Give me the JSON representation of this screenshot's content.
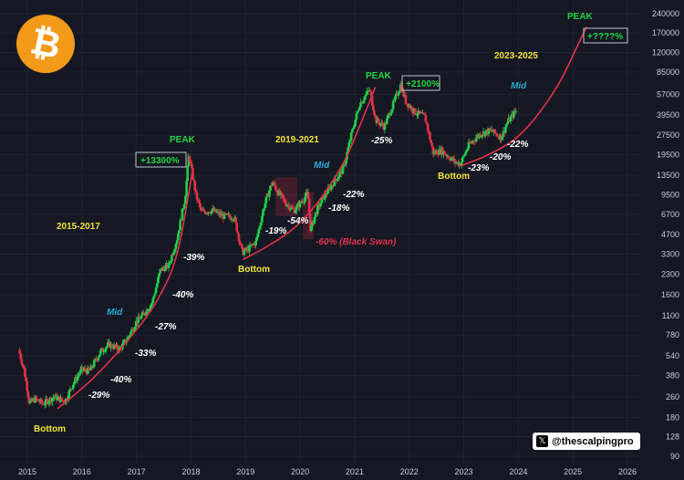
{
  "chart_data": {
    "type": "candlestick",
    "y_scale": "log",
    "ylim": [
      90,
      240000
    ],
    "y_ticks": [
      "240000",
      "170000",
      "120000",
      "85000",
      "57000",
      "39500",
      "27500",
      "19500",
      "13500",
      "9500",
      "6700",
      "4700",
      "3300",
      "2300",
      "1600",
      "1100",
      "780",
      "540",
      "380",
      "260",
      "180",
      "128",
      "90"
    ],
    "x_ticks": [
      "2015",
      "2016",
      "2017",
      "2018",
      "2019",
      "2020",
      "2021",
      "2022",
      "2023",
      "2024",
      "2025",
      "2026"
    ],
    "xlim": [
      2015.0,
      2026.2
    ],
    "price_path": [
      [
        2014.85,
        600
      ],
      [
        2014.95,
        420
      ],
      [
        2015.05,
        230
      ],
      [
        2015.15,
        250
      ],
      [
        2015.3,
        230
      ],
      [
        2015.5,
        260
      ],
      [
        2015.7,
        240
      ],
      [
        2015.85,
        330
      ],
      [
        2016.0,
        420
      ],
      [
        2016.15,
        410
      ],
      [
        2016.35,
        580
      ],
      [
        2016.5,
        660
      ],
      [
        2016.7,
        610
      ],
      [
        2016.85,
        740
      ],
      [
        2017.0,
        980
      ],
      [
        2017.15,
        1150
      ],
      [
        2017.3,
        1400
      ],
      [
        2017.45,
        2500
      ],
      [
        2017.6,
        2700
      ],
      [
        2017.75,
        4300
      ],
      [
        2017.9,
        9000
      ],
      [
        2017.97,
        19500
      ],
      [
        2018.1,
        9500
      ],
      [
        2018.2,
        7000
      ],
      [
        2018.4,
        7200
      ],
      [
        2018.6,
        6500
      ],
      [
        2018.8,
        6400
      ],
      [
        2018.95,
        3400
      ],
      [
        2019.05,
        3600
      ],
      [
        2019.2,
        4100
      ],
      [
        2019.35,
        7800
      ],
      [
        2019.5,
        12000
      ],
      [
        2019.6,
        10000
      ],
      [
        2019.75,
        8200
      ],
      [
        2019.9,
        7200
      ],
      [
        2020.05,
        8600
      ],
      [
        2020.15,
        9800
      ],
      [
        2020.2,
        5000
      ],
      [
        2020.3,
        7000
      ],
      [
        2020.45,
        9300
      ],
      [
        2020.6,
        11500
      ],
      [
        2020.8,
        15000
      ],
      [
        2020.95,
        28000
      ],
      [
        2021.1,
        48000
      ],
      [
        2021.28,
        62000
      ],
      [
        2021.4,
        36000
      ],
      [
        2021.55,
        32000
      ],
      [
        2021.7,
        46000
      ],
      [
        2021.85,
        67000
      ],
      [
        2021.95,
        50000
      ],
      [
        2022.1,
        42000
      ],
      [
        2022.3,
        38000
      ],
      [
        2022.45,
        20000
      ],
      [
        2022.6,
        21000
      ],
      [
        2022.85,
        17000
      ],
      [
        2022.95,
        16600
      ],
      [
        2023.1,
        23000
      ],
      [
        2023.3,
        28000
      ],
      [
        2023.5,
        30000
      ],
      [
        2023.7,
        26500
      ],
      [
        2023.8,
        34000
      ],
      [
        2023.95,
        42000
      ]
    ],
    "curve_1": [
      [
        2015.55,
        210
      ],
      [
        2016.2,
        360
      ],
      [
        2016.9,
        760
      ],
      [
        2017.4,
        1500
      ],
      [
        2017.75,
        3400
      ],
      [
        2018.02,
        14000
      ]
    ],
    "curve_2": [
      [
        2018.95,
        3000
      ],
      [
        2019.4,
        3800
      ],
      [
        2019.9,
        5300
      ],
      [
        2020.35,
        8600
      ],
      [
        2020.8,
        17000
      ],
      [
        2021.1,
        33000
      ],
      [
        2021.38,
        65000
      ]
    ],
    "curve_3": [
      [
        2022.95,
        16000
      ],
      [
        2023.4,
        19000
      ],
      [
        2023.9,
        25000
      ],
      [
        2024.3,
        37000
      ],
      [
        2024.75,
        70000
      ],
      [
        2025.1,
        140000
      ],
      [
        2025.25,
        190000
      ]
    ]
  },
  "annotations": {
    "p2015": "2015-2017",
    "p2019": "2019-2021",
    "p2023": "2023-2025",
    "peak1": "PEAK",
    "peak2": "PEAK",
    "peak3": "PEAK",
    "mid1": "Mid",
    "mid2": "Mid",
    "mid3": "Mid",
    "bottom1": "Bottom",
    "bottom2": "Bottom",
    "bottom3": "Bottom",
    "gain1": "+13300%",
    "gain2": "+2100%",
    "gain3": "+????%",
    "black_swan": "-60% (Black Swan)",
    "d1_29": "-29%",
    "d1_40a": "-40%",
    "d1_33": "-33%",
    "d1_27": "-27%",
    "d1_40b": "-40%",
    "d1_39": "-39%",
    "d2_19": "-19%",
    "d2_54": "-54%",
    "d2_18": "-18%",
    "d2_22": "-22%",
    "d2_25": "-25%",
    "d3_23": "-23%",
    "d3_20": "-20%",
    "d3_22": "-22%"
  },
  "logo": {
    "symbol": "₿",
    "color": "#f39a1a"
  },
  "handle": {
    "icon": "x-icon",
    "glyph": "𝕏",
    "text": "@thescalpingpro"
  },
  "colors": {
    "up": "#1fce4b",
    "down": "#e0334a",
    "curve": "#e0334a",
    "yellow": "#f2e33b",
    "cyan": "#2aa9d6",
    "green": "#22d43f",
    "background": "#151823"
  }
}
